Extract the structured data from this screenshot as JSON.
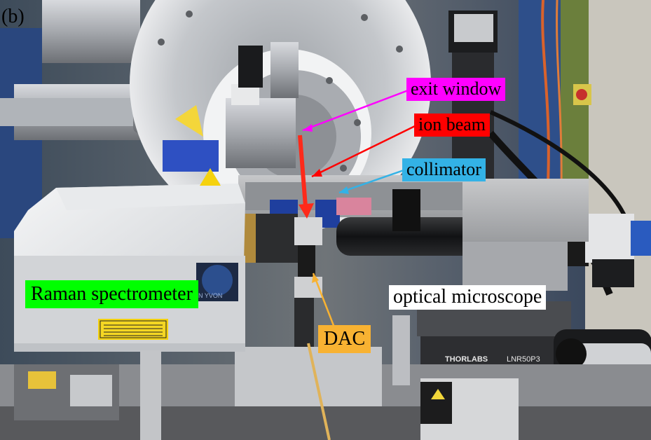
{
  "figure": {
    "panel_label": "(b)",
    "annotations": {
      "exit_window": "exit window",
      "ion_beam": "ion beam",
      "collimator": "collimator",
      "raman_spectrometer": "Raman spectrometer",
      "optical_microscope": "optical microscope",
      "dac": "DAC"
    },
    "label_colors": {
      "exit_window": "#ff00ff",
      "ion_beam": "#ff0000",
      "collimator": "#33b2e6",
      "raman_spectrometer": "#00ff00",
      "optical_microscope": "#ffffff",
      "dac": "#f8b232"
    },
    "equipment_text": {
      "brand_stage": "THORLABS",
      "stage_model": "LNR50P3",
      "raman_badge": "N YVON",
      "warning_sticker": "WARNING - CLASS 3B VISIBLE AND/OR INVISIBLE LASER RADIATION WHEN OPEN AVOID EXPOSURE TO THE BEAM"
    }
  }
}
